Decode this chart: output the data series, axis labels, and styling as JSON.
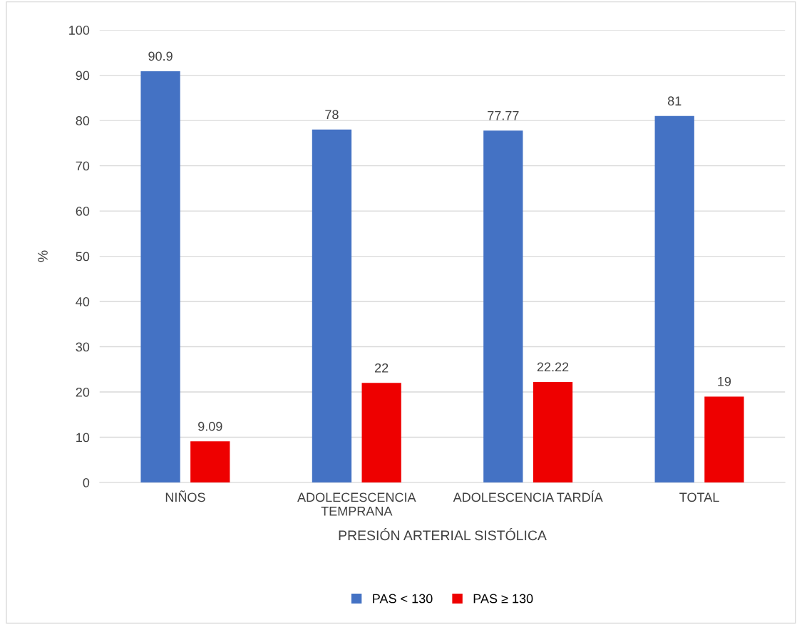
{
  "chart_data": {
    "type": "bar",
    "xlabel": "PRESIÓN ARTERIAL SISTÓLICA",
    "ylabel": "%",
    "categories": [
      "NIÑOS",
      "ADOLECESCENCIA\nTEMPRANA",
      "ADOLESCENCIA TARDÍA",
      "TOTAL"
    ],
    "series": [
      {
        "name": "PAS < 130",
        "color": "#4472c4",
        "values": [
          90.9,
          78,
          77.77,
          81
        ]
      },
      {
        "name": "PAS ≥ 130",
        "color": "#ee0000",
        "values": [
          9.09,
          22,
          22.22,
          19
        ]
      }
    ],
    "ylim": [
      0,
      100
    ],
    "yticks": [
      0,
      10,
      20,
      30,
      40,
      50,
      60,
      70,
      80,
      90,
      100
    ],
    "grid": "y",
    "legend": "bottom",
    "data_labels": true
  }
}
